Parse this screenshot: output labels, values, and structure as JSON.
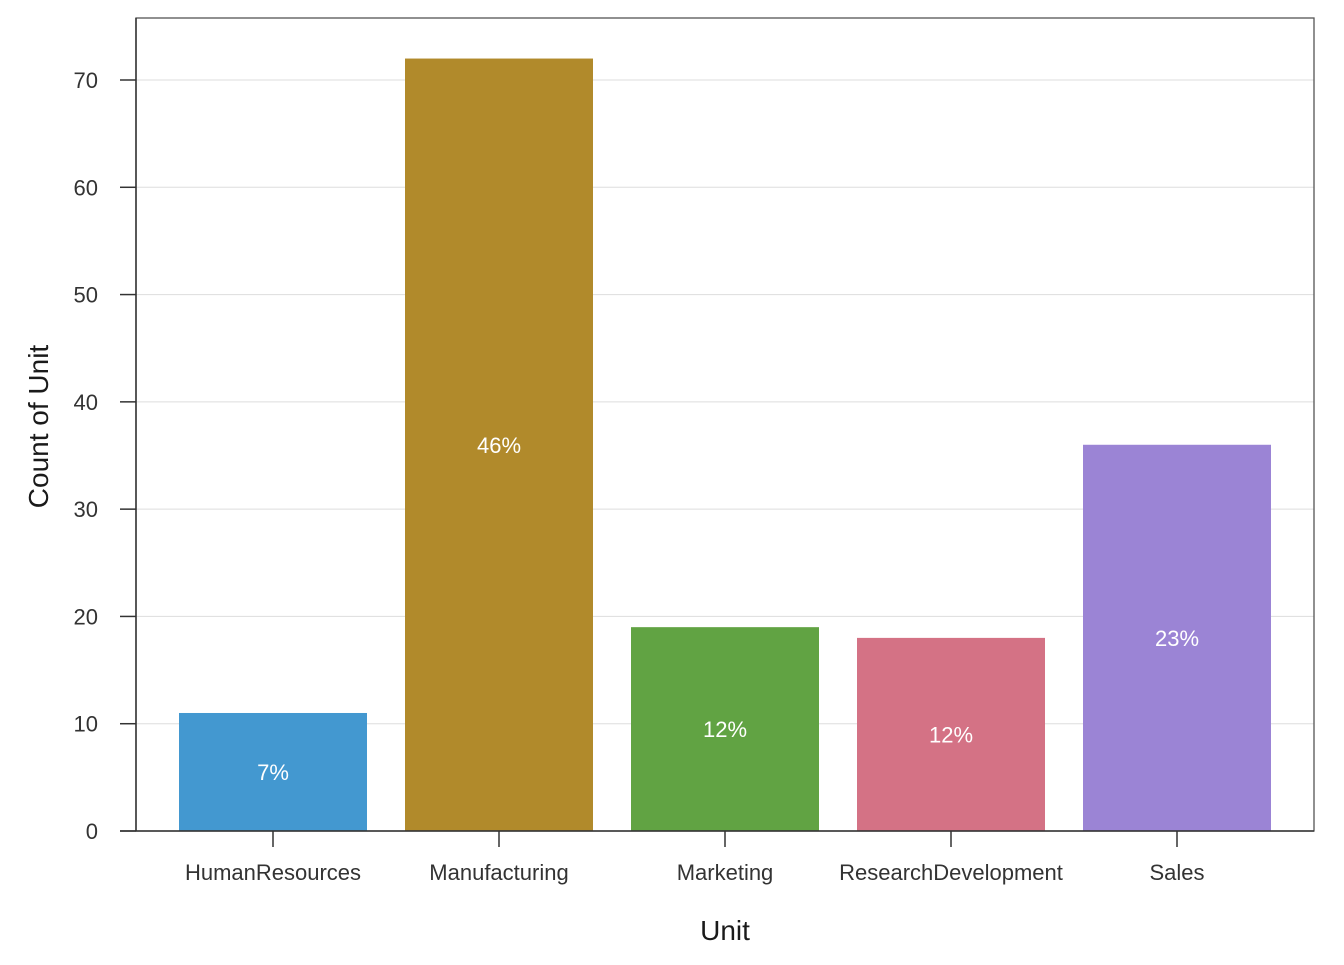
{
  "chart_data": {
    "type": "bar",
    "title": "",
    "xlabel": "Unit",
    "ylabel": "Count of Unit",
    "categories": [
      "HumanResources",
      "Manufacturing",
      "Marketing",
      "ResearchDevelopment",
      "Sales"
    ],
    "values": [
      11,
      72,
      19,
      18,
      36
    ],
    "data_labels": [
      "7%",
      "46%",
      "12%",
      "12%",
      "23%"
    ],
    "colors": [
      "#4398d0",
      "#b18a2b",
      "#61a343",
      "#d47285",
      "#9b84d5"
    ],
    "ylim": [
      0,
      75
    ],
    "yticks": [
      0,
      10,
      20,
      30,
      40,
      50,
      60,
      70
    ],
    "grid": "horizontal",
    "legend": "none"
  }
}
